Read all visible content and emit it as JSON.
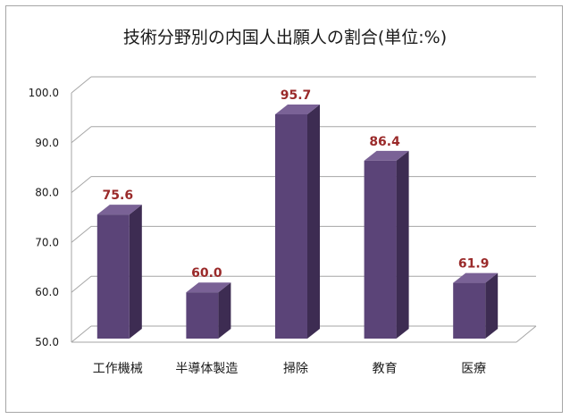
{
  "chart_data": {
    "type": "bar",
    "title": "技術分野別の内国人出願人の割合(単位:%)",
    "categories": [
      "工作機械",
      "半導体製造",
      "掃除",
      "教育",
      "医療"
    ],
    "values": [
      75.6,
      60.0,
      95.7,
      86.4,
      61.9
    ],
    "value_labels": [
      "75.6",
      "60.0",
      "95.7",
      "86.4",
      "61.9"
    ],
    "ylim": [
      50,
      100
    ],
    "yticks": [
      50,
      60,
      70,
      80,
      90,
      100
    ],
    "ytick_labels": [
      "50.0",
      "60.0",
      "70.0",
      "80.0",
      "90.0",
      "100.0"
    ],
    "xlabel": "",
    "ylabel": "",
    "grid": true,
    "legend": "none",
    "style": "3d-column",
    "colors": {
      "bar_front": "#5b4478",
      "bar_side": "#3d2c52",
      "bar_top": "#7a6296",
      "label": "#9a2a2a",
      "grid": "#a6a6a6"
    }
  }
}
